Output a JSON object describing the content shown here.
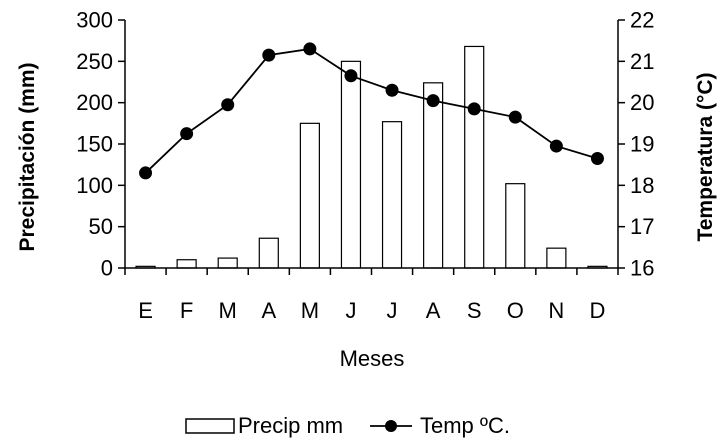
{
  "chart_data": {
    "type": "bar-line",
    "categories": [
      "E",
      "F",
      "M",
      "A",
      "M",
      "J",
      "J",
      "A",
      "S",
      "O",
      "N",
      "D"
    ],
    "series": [
      {
        "name": "Precip mm",
        "type": "bar",
        "axis": "left",
        "values": [
          2,
          10,
          12,
          36,
          175,
          250,
          177,
          224,
          268,
          102,
          24,
          2
        ]
      },
      {
        "name": "Temp ºC.",
        "type": "line",
        "axis": "right",
        "values": [
          18.3,
          19.25,
          19.95,
          21.15,
          21.3,
          20.65,
          20.3,
          20.05,
          19.85,
          19.65,
          18.95,
          18.65
        ]
      }
    ],
    "xlabel": "Meses",
    "ylabel": "Precipitación (mm)",
    "y2label": "Temperatura (°C)",
    "ylim": [
      0,
      300
    ],
    "yticks": [
      0,
      50,
      100,
      150,
      200,
      250,
      300
    ],
    "y2lim": [
      16,
      22
    ],
    "y2ticks": [
      16,
      17,
      18,
      19,
      20,
      21,
      22
    ],
    "grid": false,
    "legend": "bottom"
  }
}
